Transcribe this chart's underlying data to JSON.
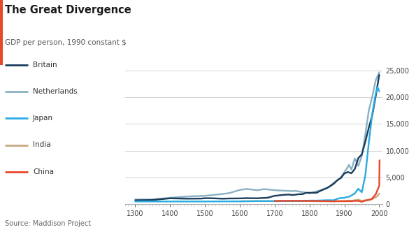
{
  "title": "The Great Divergence",
  "subtitle": "GDP per person, 1990 constant $",
  "source": "Source: Maddison Project",
  "red_bar_color": "#e8472a",
  "background_color": "#ffffff",
  "title_color": "#1a1a1a",
  "subtitle_color": "#555555",
  "source_color": "#666666",
  "ylim": [
    0,
    26000
  ],
  "yticks": [
    0,
    5000,
    10000,
    15000,
    20000,
    25000
  ],
  "xlim": [
    1270,
    2010
  ],
  "xticks": [
    1300,
    1400,
    1500,
    1600,
    1700,
    1800,
    1900,
    2000
  ],
  "series": {
    "Britain": {
      "color": "#1a3d5c",
      "linewidth": 1.7,
      "zorder": 4,
      "data": {
        "1300": 726,
        "1348": 777,
        "1400": 1090,
        "1430": 1049,
        "1450": 1024,
        "1490": 1049,
        "1500": 1114,
        "1520": 1106,
        "1550": 1022,
        "1570": 1063,
        "1600": 1077,
        "1620": 1124,
        "1650": 1100,
        "1680": 1203,
        "1700": 1563,
        "1710": 1622,
        "1720": 1711,
        "1730": 1756,
        "1740": 1804,
        "1750": 1710,
        "1760": 1771,
        "1770": 1869,
        "1780": 1874,
        "1790": 2121,
        "1800": 2121,
        "1820": 2133,
        "1830": 2446,
        "1840": 2741,
        "1850": 2997,
        "1860": 3390,
        "1870": 3836,
        "1880": 4491,
        "1890": 4882,
        "1900": 5736,
        "1910": 6004,
        "1920": 5765,
        "1930": 6572,
        "1940": 8609,
        "1950": 9290,
        "1960": 11655,
        "1970": 14268,
        "1980": 16592,
        "1990": 20205,
        "2000": 24151
      }
    },
    "Netherlands": {
      "color": "#8ab0c4",
      "linewidth": 1.7,
      "zorder": 3,
      "data": {
        "1300": 876,
        "1348": 876,
        "1400": 1195,
        "1450": 1432,
        "1500": 1560,
        "1550": 1900,
        "1570": 2072,
        "1600": 2662,
        "1620": 2840,
        "1650": 2600,
        "1670": 2819,
        "1700": 2605,
        "1750": 2440,
        "1760": 2488,
        "1780": 2248,
        "1800": 2042,
        "1820": 2381,
        "1830": 2569,
        "1840": 2811,
        "1850": 3057,
        "1860": 3463,
        "1870": 4028,
        "1880": 4427,
        "1890": 5028,
        "1900": 5996,
        "1910": 6939,
        "1913": 7341,
        "1920": 6459,
        "1930": 8551,
        "1940": 7142,
        "1950": 8996,
        "1960": 12974,
        "1970": 17469,
        "1980": 20090,
        "1990": 23161,
        "2000": 24631
      }
    },
    "Japan": {
      "color": "#29abe2",
      "linewidth": 1.7,
      "zorder": 5,
      "data": {
        "1300": 500,
        "1400": 500,
        "1500": 500,
        "1600": 520,
        "1650": 570,
        "1700": 570,
        "1750": 570,
        "1800": 669,
        "1820": 669,
        "1850": 737,
        "1870": 737,
        "1880": 994,
        "1890": 1163,
        "1900": 1180,
        "1910": 1372,
        "1913": 1387,
        "1920": 1617,
        "1930": 2026,
        "1940": 2874,
        "1950": 2216,
        "1960": 5350,
        "1970": 11439,
        "1975": 14138,
        "1980": 16903,
        "1985": 18847,
        "1990": 20683,
        "1995": 21914,
        "2000": 21069
      }
    },
    "India": {
      "color": "#c8a882",
      "linewidth": 1.7,
      "zorder": 2,
      "data": {
        "1600": 550,
        "1650": 570,
        "1700": 570,
        "1750": 570,
        "1800": 569,
        "1820": 533,
        "1850": 556,
        "1870": 533,
        "1880": 581,
        "1890": 607,
        "1900": 599,
        "1910": 673,
        "1913": 673,
        "1920": 654,
        "1930": 726,
        "1940": 853,
        "1950": 619,
        "1960": 753,
        "1970": 868,
        "1980": 938,
        "1990": 1316,
        "1995": 1549,
        "2000": 1980
      }
    },
    "China": {
      "color": "#e8472a",
      "linewidth": 1.7,
      "zorder": 6,
      "data": {
        "1700": 600,
        "1750": 630,
        "1800": 600,
        "1820": 600,
        "1850": 550,
        "1870": 530,
        "1880": 540,
        "1890": 540,
        "1900": 545,
        "1910": 552,
        "1913": 552,
        "1920": 552,
        "1930": 607,
        "1940": 619,
        "1950": 448,
        "1960": 662,
        "1970": 783,
        "1975": 845,
        "1978": 978,
        "1980": 1067,
        "1985": 1478,
        "1990": 1858,
        "1995": 2653,
        "2000": 3421,
        "2001": 8200
      }
    }
  },
  "legend_order": [
    "Britain",
    "Netherlands",
    "Japan",
    "India",
    "China"
  ]
}
